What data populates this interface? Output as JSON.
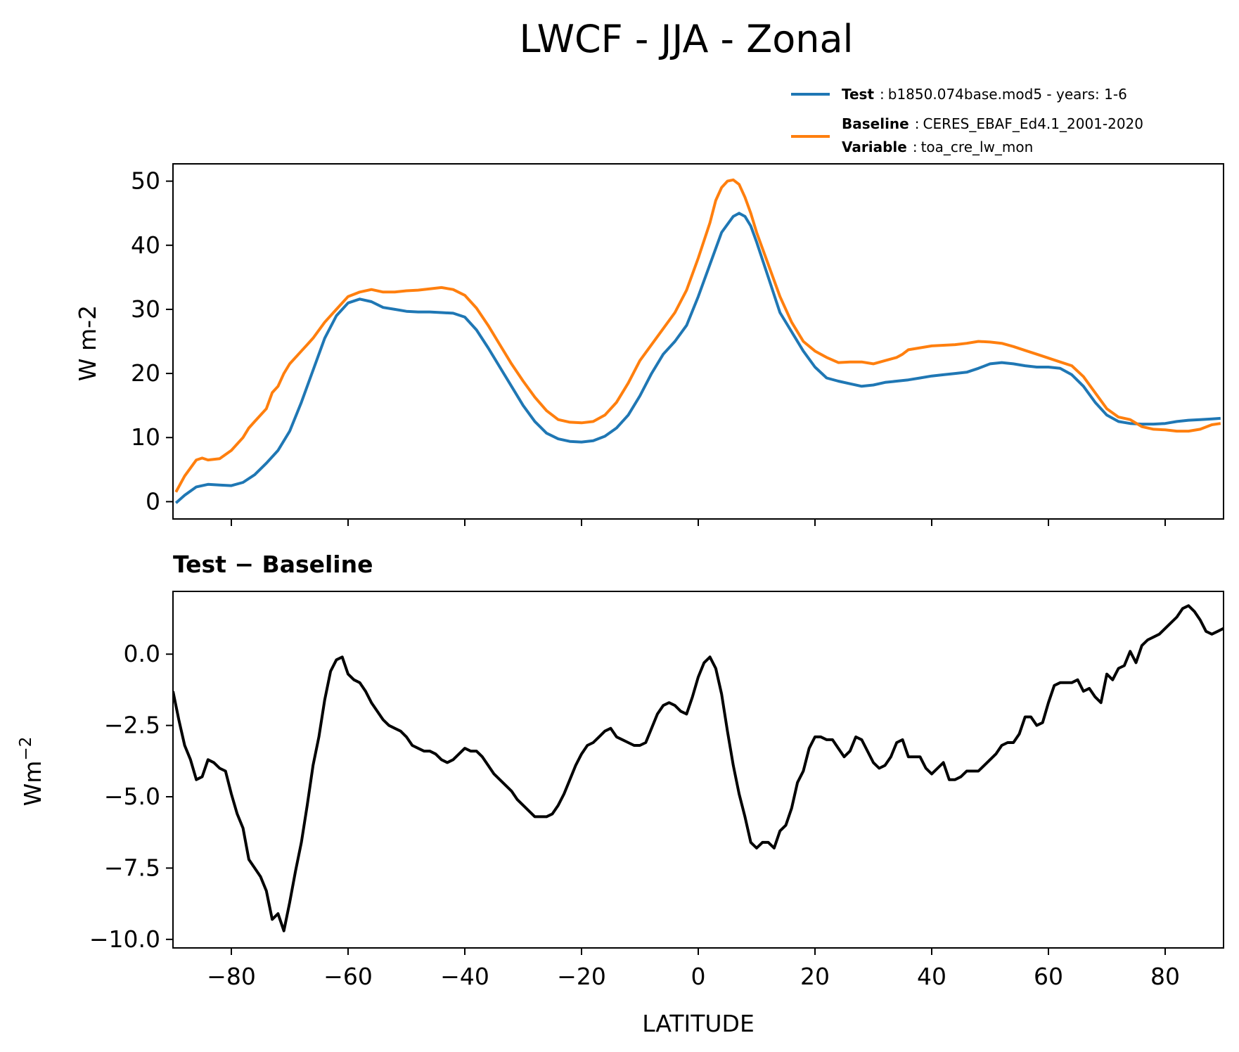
{
  "chart_data": [
    {
      "type": "line",
      "title": "LWCF - JJA - Zonal",
      "xlabel": "",
      "ylabel": "W m-2",
      "xlim": [
        -90,
        90
      ],
      "ylim": [
        -2.7,
        52.7
      ],
      "xticks": [
        -80,
        -60,
        -40,
        -20,
        0,
        20,
        40,
        60,
        80
      ],
      "yticks": [
        0,
        10,
        20,
        30,
        40,
        50
      ],
      "ytick_labels": [
        "0",
        "10",
        "20",
        "30",
        "40",
        "50"
      ],
      "grid": false,
      "legend": {
        "placement": "above-right",
        "test_key": "Test",
        "test_value": "b1850.074base.mod5 - years: 1-6",
        "baseline_key": "Baseline",
        "baseline_value": "CERES_EBAF_Ed4.1_2001-2020",
        "variable_key": "Variable",
        "variable_value": "toa_cre_lw_mon"
      },
      "series": [
        {
          "name": "Test",
          "color": "#1f77b4",
          "x": [
            -89.5,
            -88,
            -86,
            -84,
            -82,
            -80,
            -78,
            -76,
            -74,
            -72,
            -70,
            -68,
            -66,
            -64,
            -62,
            -60,
            -58,
            -56,
            -54,
            -52,
            -50,
            -48,
            -46,
            -44,
            -42,
            -40,
            -38,
            -36,
            -34,
            -32,
            -30,
            -28,
            -26,
            -24,
            -22,
            -20,
            -18,
            -16,
            -14,
            -12,
            -10,
            -8,
            -6,
            -4,
            -2,
            0,
            2,
            4,
            6,
            7,
            8,
            9,
            10,
            12,
            14,
            16,
            18,
            20,
            22,
            24,
            26,
            28,
            30,
            32,
            34,
            36,
            38,
            40,
            42,
            44,
            46,
            48,
            50,
            52,
            54,
            56,
            58,
            60,
            62,
            64,
            66,
            68,
            70,
            72,
            74,
            76,
            78,
            80,
            82,
            84,
            86,
            88,
            89.5
          ],
          "y": [
            -0.2,
            1.0,
            2.3,
            2.7,
            2.6,
            2.5,
            3.0,
            4.2,
            6.0,
            8.0,
            11.0,
            15.5,
            20.5,
            25.5,
            29.0,
            31.0,
            31.6,
            31.2,
            30.3,
            30.0,
            29.7,
            29.6,
            29.6,
            29.5,
            29.4,
            28.8,
            26.8,
            24.0,
            21.0,
            18.0,
            15.0,
            12.5,
            10.7,
            9.8,
            9.4,
            9.3,
            9.5,
            10.2,
            11.5,
            13.5,
            16.5,
            20.0,
            23.0,
            25.0,
            27.5,
            32.0,
            37.0,
            42.0,
            44.5,
            45.0,
            44.5,
            43.0,
            40.5,
            35.0,
            29.5,
            26.5,
            23.5,
            21.0,
            19.3,
            18.8,
            18.4,
            18.0,
            18.2,
            18.6,
            18.8,
            19.0,
            19.3,
            19.6,
            19.8,
            20.0,
            20.2,
            20.8,
            21.5,
            21.7,
            21.5,
            21.2,
            21.0,
            21.0,
            20.8,
            19.8,
            18.0,
            15.5,
            13.5,
            12.5,
            12.2,
            12.1,
            12.1,
            12.2,
            12.5,
            12.7,
            12.8,
            12.9,
            13.0
          ]
        },
        {
          "name": "Baseline",
          "color": "#ff7f0e",
          "x": [
            -89.5,
            -88,
            -86,
            -85,
            -84,
            -82,
            -80,
            -78,
            -77,
            -76,
            -74,
            -73,
            -72,
            -71,
            -70,
            -68,
            -67,
            -66,
            -64,
            -62,
            -60,
            -58,
            -56,
            -54,
            -52,
            -50,
            -48,
            -46,
            -44,
            -42,
            -40,
            -38,
            -36,
            -34,
            -32,
            -30,
            -28,
            -26,
            -24,
            -22,
            -20,
            -18,
            -16,
            -14,
            -12,
            -10,
            -8,
            -6,
            -4,
            -2,
            0,
            2,
            3,
            4,
            5,
            6,
            7,
            8,
            9,
            10,
            12,
            14,
            16,
            18,
            20,
            22,
            24,
            26,
            28,
            30,
            32,
            34,
            35,
            36,
            38,
            40,
            42,
            44,
            46,
            48,
            50,
            52,
            54,
            56,
            58,
            60,
            62,
            64,
            66,
            68,
            70,
            72,
            74,
            76,
            78,
            80,
            82,
            84,
            86,
            88,
            89.5
          ],
          "y": [
            1.5,
            4.0,
            6.5,
            6.8,
            6.5,
            6.7,
            8.0,
            10.0,
            11.5,
            12.5,
            14.5,
            17.0,
            18.0,
            20.0,
            21.5,
            23.5,
            24.5,
            25.5,
            28.0,
            30.0,
            32.0,
            32.7,
            33.1,
            32.7,
            32.7,
            32.9,
            33.0,
            33.2,
            33.4,
            33.1,
            32.2,
            30.2,
            27.5,
            24.5,
            21.5,
            18.8,
            16.3,
            14.2,
            12.8,
            12.4,
            12.3,
            12.5,
            13.5,
            15.5,
            18.5,
            22.0,
            24.5,
            27.0,
            29.5,
            33.0,
            38.0,
            43.5,
            47.0,
            49.0,
            50.0,
            50.2,
            49.5,
            47.5,
            45.0,
            42.0,
            37.0,
            32.0,
            28.0,
            25.0,
            23.5,
            22.5,
            21.7,
            21.8,
            21.8,
            21.5,
            22.0,
            22.5,
            23.0,
            23.7,
            24.0,
            24.3,
            24.4,
            24.5,
            24.7,
            25.0,
            24.9,
            24.7,
            24.2,
            23.6,
            23.0,
            22.4,
            21.8,
            21.2,
            19.5,
            17.0,
            14.5,
            13.2,
            12.8,
            11.7,
            11.3,
            11.2,
            11.0,
            11.0,
            11.3,
            12.0,
            12.2
          ]
        }
      ]
    },
    {
      "type": "line",
      "title": "Test − Baseline",
      "xlabel": "LATITUDE",
      "ylabel": "Wm",
      "ylabel_sup": "−2",
      "xlim": [
        -90,
        90
      ],
      "ylim": [
        -10.3,
        2.2
      ],
      "xticks": [
        -80,
        -60,
        -40,
        -20,
        0,
        20,
        40,
        60,
        80
      ],
      "xtick_labels": [
        "−80",
        "−60",
        "−40",
        "−20",
        "0",
        "20",
        "40",
        "60",
        "80"
      ],
      "yticks": [
        0.0,
        -2.5,
        -5.0,
        -7.5,
        -10.0
      ],
      "ytick_labels": [
        "0.0",
        "−2.5",
        "−5.0",
        "−7.5",
        "−10.0"
      ],
      "grid": false,
      "series": [
        {
          "name": "Test − Baseline",
          "color": "#000000",
          "x": [
            -90,
            -89,
            -88,
            -87,
            -86,
            -85,
            -84,
            -83,
            -82,
            -81,
            -80,
            -79,
            -78,
            -77,
            -76,
            -75,
            -74,
            -73,
            -72,
            -71,
            -70,
            -69,
            -68,
            -67,
            -66,
            -65,
            -64,
            -63,
            -62,
            -61,
            -60,
            -59,
            -58,
            -57,
            -56,
            -55,
            -54,
            -53,
            -52,
            -51,
            -50,
            -49,
            -48,
            -47,
            -46,
            -45,
            -44,
            -43,
            -42,
            -41,
            -40,
            -39,
            -38,
            -37,
            -36,
            -35,
            -34,
            -33,
            -32,
            -31,
            -30,
            -29,
            -28,
            -27,
            -26,
            -25,
            -24,
            -23,
            -22,
            -21,
            -20,
            -19,
            -18,
            -17,
            -16,
            -15,
            -14,
            -13,
            -12,
            -11,
            -10,
            -9,
            -8,
            -7,
            -6,
            -5,
            -4,
            -3,
            -2,
            -1,
            0,
            1,
            2,
            3,
            4,
            5,
            6,
            7,
            8,
            9,
            10,
            11,
            12,
            13,
            14,
            15,
            16,
            17,
            18,
            19,
            20,
            21,
            22,
            23,
            24,
            25,
            26,
            27,
            28,
            29,
            30,
            31,
            32,
            33,
            34,
            35,
            36,
            37,
            38,
            39,
            40,
            41,
            42,
            43,
            44,
            45,
            46,
            47,
            48,
            49,
            50,
            51,
            52,
            53,
            54,
            55,
            56,
            57,
            58,
            59,
            60,
            61,
            62,
            63,
            64,
            65,
            66,
            67,
            68,
            69,
            70,
            71,
            72,
            73,
            74,
            75,
            76,
            77,
            78,
            79,
            80,
            81,
            82,
            83,
            84,
            85,
            86,
            87,
            88,
            89,
            90
          ],
          "y": [
            -1.3,
            -2.3,
            -3.2,
            -3.7,
            -4.4,
            -4.3,
            -3.7,
            -3.8,
            -4.0,
            -4.1,
            -4.9,
            -5.6,
            -6.1,
            -7.2,
            -7.5,
            -7.8,
            -8.3,
            -9.3,
            -9.1,
            -9.7,
            -8.7,
            -7.6,
            -6.6,
            -5.3,
            -3.9,
            -2.9,
            -1.6,
            -0.6,
            -0.2,
            -0.1,
            -0.7,
            -0.9,
            -1.0,
            -1.3,
            -1.7,
            -2.0,
            -2.3,
            -2.5,
            -2.6,
            -2.7,
            -2.9,
            -3.2,
            -3.3,
            -3.4,
            -3.4,
            -3.5,
            -3.7,
            -3.8,
            -3.7,
            -3.5,
            -3.3,
            -3.4,
            -3.4,
            -3.6,
            -3.9,
            -4.2,
            -4.4,
            -4.6,
            -4.8,
            -5.1,
            -5.3,
            -5.5,
            -5.7,
            -5.7,
            -5.7,
            -5.6,
            -5.3,
            -4.9,
            -4.4,
            -3.9,
            -3.5,
            -3.2,
            -3.1,
            -2.9,
            -2.7,
            -2.6,
            -2.9,
            -3.0,
            -3.1,
            -3.2,
            -3.2,
            -3.1,
            -2.6,
            -2.1,
            -1.8,
            -1.7,
            -1.8,
            -2.0,
            -2.1,
            -1.5,
            -0.8,
            -0.3,
            -0.1,
            -0.5,
            -1.4,
            -2.7,
            -3.9,
            -4.9,
            -5.7,
            -6.6,
            -6.8,
            -6.6,
            -6.6,
            -6.8,
            -6.2,
            -6.0,
            -5.4,
            -4.5,
            -4.1,
            -3.3,
            -2.9,
            -2.9,
            -3.0,
            -3.0,
            -3.3,
            -3.6,
            -3.4,
            -2.9,
            -3.0,
            -3.4,
            -3.8,
            -4.0,
            -3.9,
            -3.6,
            -3.1,
            -3.0,
            -3.6,
            -3.6,
            -3.6,
            -4.0,
            -4.2,
            -4.0,
            -3.8,
            -4.4,
            -4.4,
            -4.3,
            -4.1,
            -4.1,
            -4.1,
            -3.9,
            -3.7,
            -3.5,
            -3.2,
            -3.1,
            -3.1,
            -2.8,
            -2.2,
            -2.2,
            -2.5,
            -2.4,
            -1.7,
            -1.1,
            -1.0,
            -1.0,
            -1.0,
            -0.9,
            -1.3,
            -1.2,
            -1.5,
            -1.7,
            -0.7,
            -0.9,
            -0.5,
            -0.4,
            0.1,
            -0.3,
            0.3,
            0.5,
            0.6,
            0.7,
            0.9,
            1.1,
            1.3,
            1.6,
            1.7,
            1.5,
            1.2,
            0.8,
            0.7,
            0.8,
            0.9
          ]
        }
      ]
    }
  ]
}
